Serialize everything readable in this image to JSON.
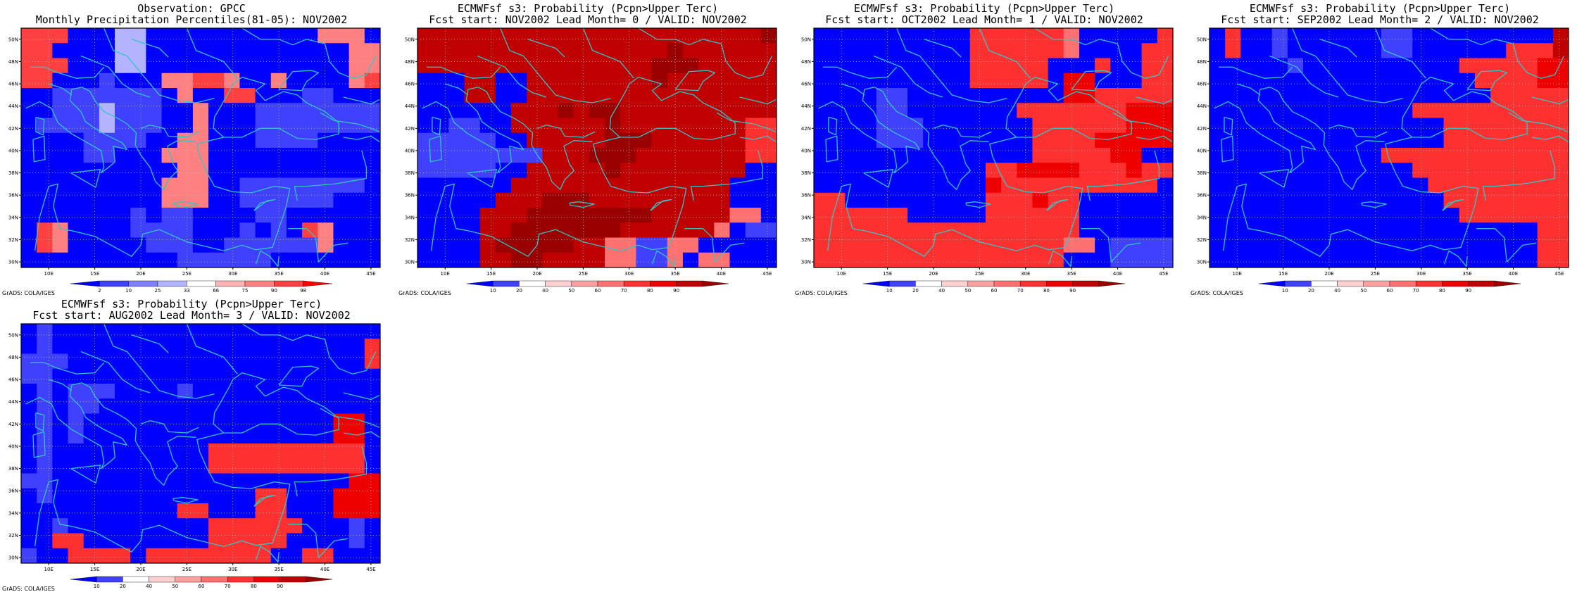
{
  "colors": {
    "coast": "#33c4c4",
    "grid": "#bbbbbb",
    "frame": "#000000"
  },
  "axes": {
    "lon_ticks": [
      "10E",
      "15E",
      "20E",
      "25E",
      "30E",
      "35E",
      "40E",
      "45E"
    ],
    "lat_ticks": [
      "30N",
      "32N",
      "34N",
      "36N",
      "38N",
      "40N",
      "42N",
      "44N",
      "46N",
      "48N",
      "50N"
    ],
    "lon_range": [
      7,
      46
    ],
    "lat_range": [
      29.5,
      51
    ]
  },
  "credit": "GrADS: COLA/IGES",
  "panels": [
    {
      "title1": "Observation: GPCC",
      "title2": "Monthly Precipitation Percentiles(81-05): NOV2002",
      "colorbar": {
        "labels": [
          "2",
          "10",
          "25",
          "33",
          "66",
          "75",
          "90",
          "98"
        ],
        "colors": [
          "#0000ff",
          "#4040ff",
          "#8080ff",
          "#b3b3ff",
          "#ffffff",
          "#ffb3b3",
          "#ff8080",
          "#ff4040",
          "#ff0000"
        ]
      },
      "grid": [
        "77700033000000000006660",
        "77000033000000000000066",
        "77700033000000000000066",
        "77000100066776006000067",
        "00111111106007700011000",
        "00111311100600011111111",
        "01111311100600011111111",
        "00001111006600011110000",
        "00001100066600000000000",
        "00000000006600000000000",
        "00000000066600111111110",
        "00000000066600111111000",
        "00000001011000011000000",
        "07600001111000101076000",
        "07600000111001111116000",
        "00000000001111110000000"
      ]
    },
    {
      "title1": "ECMWFsf s3: Probability (Pcpn>Upper Terc)",
      "title2": "Fcst start: NOV2002  Lead Month= 0 / VALID: NOV2002",
      "colorbar": {
        "labels": [
          "10",
          "20",
          "40",
          "50",
          "60",
          "70",
          "80",
          "90"
        ],
        "colors": [
          "#0000ff",
          "#4040ff",
          "#ffffff",
          "#ffd0d0",
          "#ffa0a0",
          "#ff7070",
          "#ff3030",
          "#ee0000",
          "#c00000",
          "#990000"
        ]
      },
      "grid": [
        "88888888888888888888889",
        "88888888888888889888888",
        "88888888888888899988888",
        "00088008888888898888888",
        "00088008888888888888888",
        "00000088898998888888888",
        "00110088888898888888866",
        "11111008888899988888866",
        "11111111888999888888866",
        "11111008888898888888800",
        "00000088888888888888000",
        "00000888999888888888000",
        "00008889999999988888550",
        "00008899999998888885011",
        "00008999998855115500000",
        "00008899888855115055000"
      ]
    },
    {
      "title1": "ECMWFsf s3: Probability (Pcpn>Upper Terc)",
      "title2": "Fcst start: OCT2002  Lead Month= 1 / VALID: NOV2002",
      "colorbar": {
        "labels": [
          "10",
          "20",
          "40",
          "50",
          "60",
          "70",
          "80",
          "90"
        ],
        "colors": [
          "#0000ff",
          "#4040ff",
          "#ffffff",
          "#ffd0d0",
          "#ffa0a0",
          "#ff7070",
          "#ff3030",
          "#ee0000",
          "#c00000",
          "#990000"
        ]
      },
      "grid": [
        "00000000006666665000006",
        "00000000006666665000066",
        "00000000006666600060066",
        "00000000006666607700066",
        "00001100000000007766666",
        "00001100000006666666777",
        "00001110000000666666777",
        "00001110000000666677777",
        "00000000000000666667700",
        "00000000000667777666766",
        "00000000000766666666660",
        "66000000000666766000000",
        "66666600000666666000000",
        "66666666666666666000000",
        "66666666666666665501111",
        "66666666666666660001111"
      ]
    },
    {
      "title1": "ECMWFsf s3: Probability (Pcpn>Upper Terc)",
      "title2": "Fcst start: SEP2002  Lead Month= 2 / VALID: NOV2002",
      "colorbar": {
        "labels": [
          "10",
          "20",
          "40",
          "50",
          "60",
          "70",
          "80",
          "90"
        ],
        "colors": [
          "#0000ff",
          "#4040ff",
          "#ffffff",
          "#ffd0d0",
          "#ffa0a0",
          "#ff7070",
          "#ff3030",
          "#ee0000",
          "#c00000",
          "#990000"
        ]
      },
      "grid": [
        "06001000000110000000008",
        "06001000000110000006668",
        "00000100000000006666677",
        "00000000000000000666677",
        "00000000000000000066666",
        "00000000000006666666666",
        "00000000000000066666666",
        "00000000000000066666666",
        "00000000000666666666666",
        "00000000000006666666666",
        "00000000000000666666666",
        "00000000000000066666666",
        "00000000000000006666666",
        "00000000000000000000066",
        "00000000000000000000066",
        "00000000000000000000066"
      ]
    },
    {
      "title1": "ECMWFsf s3: Probability (Pcpn>Upper Terc)",
      "title2": "Fcst start: AUG2002  Lead Month= 3 / VALID: NOV2002",
      "colorbar": {
        "labels": [
          "10",
          "20",
          "40",
          "50",
          "60",
          "70",
          "80",
          "90"
        ],
        "colors": [
          "#0000ff",
          "#4040ff",
          "#ffffff",
          "#ffd0d0",
          "#ffa0a0",
          "#ff7070",
          "#ff3030",
          "#ee0000",
          "#c00000",
          "#990000"
        ]
      },
      "grid": [
        "01000000000000000000000",
        "01000000000000000000006",
        "11100000000000000000006",
        "11000000000000000000000",
        "01011100001000000000000",
        "01011000000000000000000",
        "01010000000000000000770",
        "01010000000000000000770",
        "01000000000066666666660",
        "01000000000066666666660",
        "11000000000000000000077",
        "01000000000000066000777",
        "00000000006600066000777",
        "00100000000066666600010",
        "00660000000066666000010",
        "10066660666666660066000"
      ]
    }
  ]
}
